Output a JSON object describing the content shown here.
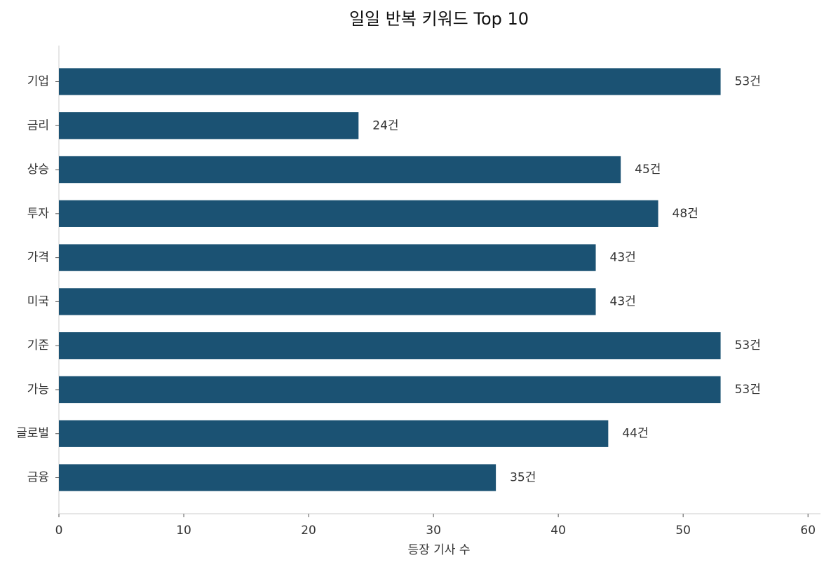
{
  "chart_data": {
    "type": "bar",
    "orientation": "horizontal",
    "title": "일일 반복 키워드 Top 10",
    "categories": [
      "기업",
      "금리",
      "상승",
      "투자",
      "가격",
      "미국",
      "기준",
      "가능",
      "글로벌",
      "금융"
    ],
    "values": [
      53,
      24,
      45,
      48,
      43,
      43,
      53,
      53,
      44,
      35
    ],
    "value_labels": [
      "53건",
      "24건",
      "45건",
      "48건",
      "43건",
      "43건",
      "53건",
      "53건",
      "44건",
      "35건"
    ],
    "color": "#1b5273",
    "xlabel": "등장 기사 수",
    "xlim": [
      0,
      61
    ],
    "xticks": [
      0,
      10,
      20,
      30,
      40,
      50,
      60
    ],
    "grid": false
  }
}
